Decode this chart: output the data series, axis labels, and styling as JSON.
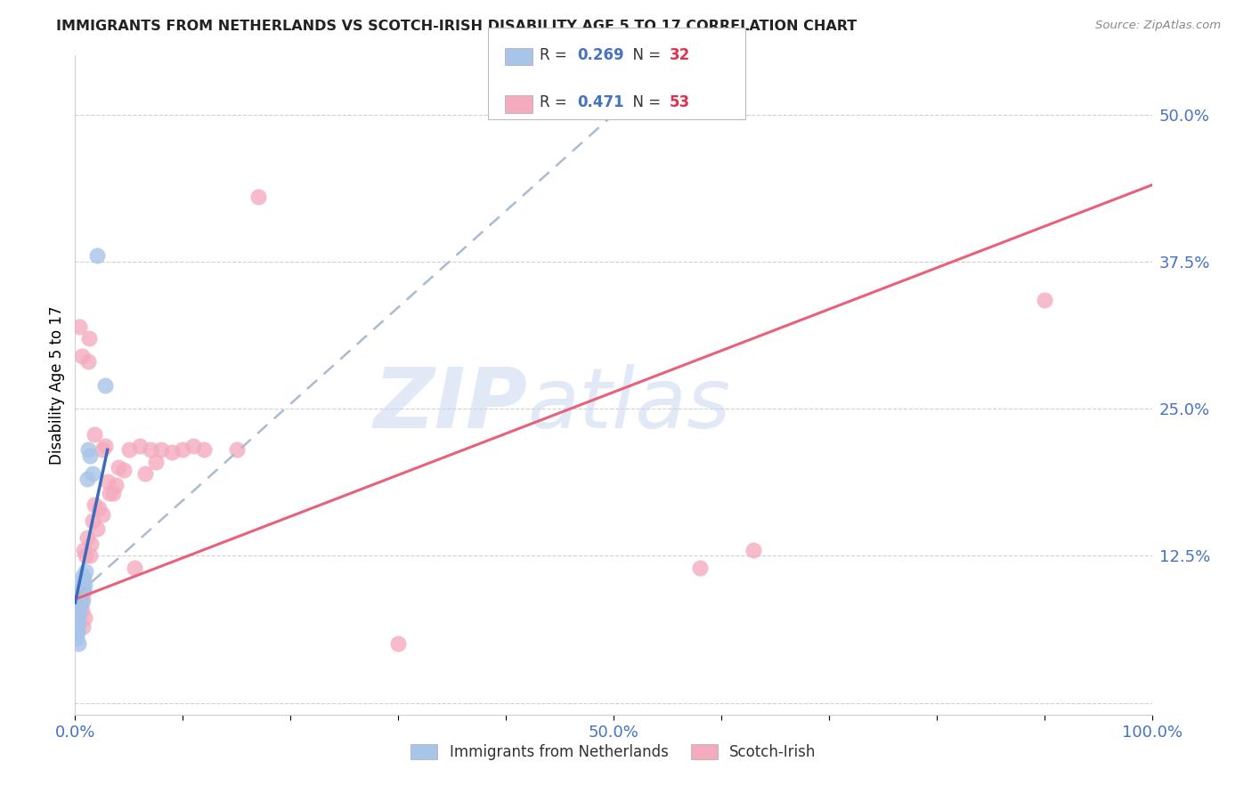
{
  "title": "IMMIGRANTS FROM NETHERLANDS VS SCOTCH-IRISH DISABILITY AGE 5 TO 17 CORRELATION CHART",
  "source": "Source: ZipAtlas.com",
  "ylabel": "Disability Age 5 to 17",
  "r_netherlands": "0.269",
  "n_netherlands": "32",
  "r_scotch_irish": "0.471",
  "n_scotch_irish": "53",
  "color_netherlands": "#a8c4e8",
  "color_scotch_irish": "#f4abbe",
  "line_color_netherlands": "#3a6bbf",
  "line_color_scotch_irish": "#e8607a",
  "dashed_line_color": "#aabbd0",
  "xlim": [
    0.0,
    1.0
  ],
  "ylim": [
    -0.01,
    0.55
  ],
  "xtick_positions": [
    0.0,
    0.1,
    0.2,
    0.3,
    0.4,
    0.5,
    0.6,
    0.7,
    0.8,
    0.9,
    1.0
  ],
  "xticklabels": [
    "0.0%",
    "",
    "",
    "",
    "",
    "50.0%",
    "",
    "",
    "",
    "",
    "100.0%"
  ],
  "ytick_positions": [
    0.0,
    0.125,
    0.25,
    0.375,
    0.5
  ],
  "ytick_labels": [
    "",
    "12.5%",
    "25.0%",
    "37.5%",
    "50.0%"
  ],
  "nl_x": [
    0.001,
    0.001,
    0.002,
    0.002,
    0.002,
    0.003,
    0.003,
    0.003,
    0.004,
    0.004,
    0.004,
    0.005,
    0.005,
    0.005,
    0.006,
    0.006,
    0.006,
    0.007,
    0.007,
    0.008,
    0.008,
    0.009,
    0.01,
    0.011,
    0.012,
    0.014,
    0.016,
    0.02,
    0.028,
    0.001,
    0.002,
    0.003
  ],
  "nl_y": [
    0.06,
    0.07,
    0.065,
    0.072,
    0.078,
    0.068,
    0.075,
    0.082,
    0.08,
    0.085,
    0.09,
    0.088,
    0.092,
    0.095,
    0.085,
    0.095,
    0.1,
    0.098,
    0.108,
    0.095,
    0.105,
    0.1,
    0.112,
    0.19,
    0.215,
    0.21,
    0.195,
    0.38,
    0.27,
    0.055,
    0.06,
    0.05
  ],
  "si_x": [
    0.001,
    0.002,
    0.002,
    0.003,
    0.003,
    0.004,
    0.004,
    0.005,
    0.005,
    0.006,
    0.006,
    0.007,
    0.007,
    0.008,
    0.008,
    0.009,
    0.01,
    0.011,
    0.012,
    0.013,
    0.015,
    0.016,
    0.018,
    0.02,
    0.022,
    0.025,
    0.028,
    0.03,
    0.035,
    0.04,
    0.045,
    0.05,
    0.06,
    0.07,
    0.08,
    0.1,
    0.12,
    0.15,
    0.018,
    0.014,
    0.025,
    0.032,
    0.038,
    0.055,
    0.065,
    0.075,
    0.09,
    0.11,
    0.58,
    0.63,
    0.17,
    0.9,
    0.3
  ],
  "si_y": [
    0.08,
    0.072,
    0.088,
    0.068,
    0.082,
    0.075,
    0.32,
    0.09,
    0.085,
    0.078,
    0.295,
    0.065,
    0.088,
    0.095,
    0.13,
    0.072,
    0.125,
    0.14,
    0.29,
    0.31,
    0.135,
    0.155,
    0.228,
    0.148,
    0.165,
    0.215,
    0.218,
    0.188,
    0.178,
    0.2,
    0.198,
    0.215,
    0.218,
    0.215,
    0.215,
    0.215,
    0.215,
    0.215,
    0.168,
    0.125,
    0.16,
    0.178,
    0.185,
    0.115,
    0.195,
    0.205,
    0.213,
    0.218,
    0.115,
    0.13,
    0.43,
    0.342,
    0.05
  ],
  "nl_line_x": [
    0.0,
    0.03
  ],
  "nl_line_y": [
    0.085,
    0.215
  ],
  "si_line_x0": 0.0,
  "si_line_x1": 1.0,
  "si_line_y0": 0.088,
  "si_line_y1": 0.44,
  "dashed_line_x": [
    0.0,
    0.5
  ],
  "dashed_line_y": [
    0.09,
    0.5
  ]
}
